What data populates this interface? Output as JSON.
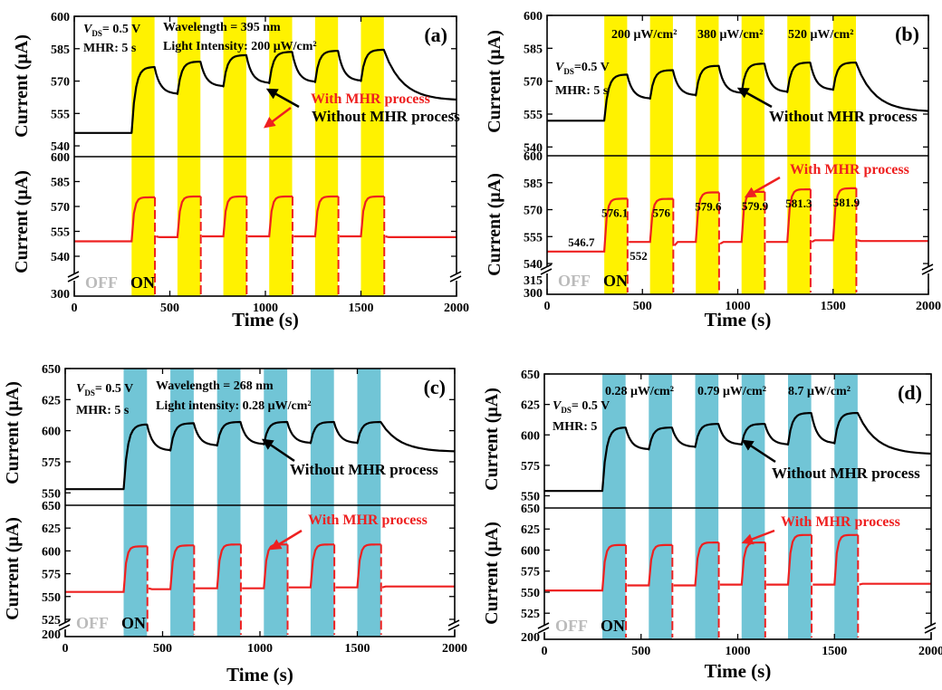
{
  "figure": {
    "xlabel": "Time (s)",
    "ylabel": "Current (μA)",
    "off_label": "OFF",
    "on_label": "ON",
    "without_label": "Without MHR process",
    "with_label": "With MHR process"
  },
  "colors": {
    "yellow": "#FFF200",
    "cyan": "#71C5D6",
    "without": "#000000",
    "with": "#EE2020",
    "off": "#BBBBBB"
  },
  "chart_data": [
    {
      "id": "a",
      "label": "(a)",
      "type": "line",
      "band_color": "yellow",
      "xlim": [
        0,
        2000
      ],
      "xticks": [
        0,
        500,
        1000,
        1500,
        2000
      ],
      "upper": {
        "ylim": [
          535,
          600
        ],
        "yticks": [
          540,
          555,
          570,
          585,
          600
        ]
      },
      "lower": {
        "ylim": [
          528,
          600
        ],
        "yticks": [
          540,
          555,
          570,
          585,
          600
        ],
        "break_tick": 300
      },
      "bands": [
        [
          300,
          420
        ],
        [
          540,
          660
        ],
        [
          780,
          900
        ],
        [
          1020,
          1140
        ],
        [
          1260,
          1380
        ],
        [
          1500,
          1620
        ]
      ],
      "notes": [
        "Wavelength = 395 nm",
        "Light Intensity: 200 μW/cm²",
        "V_DS= 0.5 V",
        "MHR: 5 s"
      ],
      "without": {
        "baseline": 546,
        "end": 561,
        "peaks": [
          576.5,
          579,
          582,
          583.5,
          584,
          584.5
        ],
        "dips": [
          564,
          567.5,
          569,
          569.5,
          570,
          570.5
        ]
      },
      "with": {
        "baseline": 549,
        "peaks": [
          575.5,
          576,
          576,
          576,
          576,
          576
        ],
        "lows": [
          552,
          552,
          552,
          552,
          552,
          552
        ],
        "settle": [
          551.5,
          552,
          552,
          552,
          552,
          552
        ],
        "end": 551.5
      },
      "value_labels": []
    },
    {
      "id": "b",
      "label": "(b)",
      "type": "line",
      "band_color": "yellow",
      "xlim": [
        0,
        2000
      ],
      "xticks": [
        0,
        500,
        1000,
        1500,
        2000
      ],
      "upper": {
        "ylim": [
          536,
          600
        ],
        "yticks": [
          540,
          555,
          570,
          585,
          600
        ]
      },
      "lower": {
        "ylim": [
          537,
          600
        ],
        "yticks": [
          540,
          555,
          570,
          585,
          600
        ],
        "break_tick": 315,
        "bottom_tick": 300
      },
      "bands": [
        [
          300,
          420
        ],
        [
          540,
          660
        ],
        [
          780,
          900
        ],
        [
          1020,
          1140
        ],
        [
          1260,
          1380
        ],
        [
          1500,
          1620
        ]
      ],
      "notes": [
        "V_DS=0.5 V",
        "MHR: 5 s",
        "200 μW/cm²",
        "380 μW/cm²",
        "520 μW/cm²"
      ],
      "without": {
        "baseline": 552,
        "end": 556,
        "peaks": [
          573,
          575,
          577,
          578,
          578.5,
          578.5
        ],
        "dips": [
          562,
          563.5,
          564.5,
          565,
          566,
          566.5
        ]
      },
      "with": {
        "baseline": 546.7,
        "peaks": [
          576.1,
          576,
          579.6,
          579.9,
          581.3,
          581.9
        ],
        "lows": [
          552,
          550,
          551,
          552,
          552,
          553
        ],
        "settle": [
          552,
          552,
          552,
          552,
          553,
          553
        ],
        "end": 552.5
      },
      "value_labels": [
        {
          "x": 180,
          "y": 546.7,
          "text": "546.7"
        },
        {
          "x": 355,
          "y": 576.1,
          "text": "576.1"
        },
        {
          "x": 480,
          "y": 552,
          "text": "552"
        },
        {
          "x": 600,
          "y": 576,
          "text": "576"
        },
        {
          "x": 845,
          "y": 579.6,
          "text": "579.6"
        },
        {
          "x": 1090,
          "y": 579.9,
          "text": "579.9"
        },
        {
          "x": 1320,
          "y": 581.3,
          "text": "581.3"
        },
        {
          "x": 1570,
          "y": 581.9,
          "text": "581.9"
        }
      ]
    },
    {
      "id": "c",
      "label": "(c)",
      "type": "line",
      "band_color": "cyan",
      "xlim": [
        0,
        2000
      ],
      "xticks": [
        0,
        500,
        1000,
        1500,
        2000
      ],
      "upper": {
        "ylim": [
          540,
          650
        ],
        "yticks": [
          550,
          575,
          600,
          625,
          650
        ]
      },
      "lower": {
        "ylim": [
          519,
          650
        ],
        "yticks": [
          525,
          550,
          575,
          600,
          625,
          650
        ],
        "break_tick": 200
      },
      "bands": [
        [
          300,
          420
        ],
        [
          540,
          660
        ],
        [
          780,
          900
        ],
        [
          1020,
          1140
        ],
        [
          1260,
          1380
        ],
        [
          1500,
          1620
        ]
      ],
      "notes": [
        "Wavelength = 268 nm",
        "Light intensity: 0.28 μW/cm²",
        "V_DS= 0.5 V",
        "MHR: 5 s"
      ],
      "without": {
        "baseline": 553,
        "end": 583,
        "peaks": [
          605,
          606,
          607,
          607,
          607,
          607
        ],
        "dips": [
          584,
          588,
          589,
          590,
          590,
          590
        ]
      },
      "with": {
        "baseline": 555,
        "peaks": [
          605,
          606,
          607,
          607,
          607,
          607
        ],
        "lows": [
          559,
          559,
          559,
          560,
          560,
          560
        ],
        "settle": [
          558,
          559,
          559,
          560,
          560,
          560
        ],
        "end": 561
      },
      "value_labels": []
    },
    {
      "id": "d",
      "label": "(d)",
      "type": "line",
      "band_color": "cyan",
      "xlim": [
        0,
        2000
      ],
      "xticks": [
        0,
        500,
        1000,
        1500,
        2000
      ],
      "upper": {
        "ylim": [
          540,
          650
        ],
        "yticks": [
          550,
          575,
          600,
          625,
          650
        ]
      },
      "lower": {
        "ylim": [
          508,
          650
        ],
        "yticks": [
          525,
          550,
          575,
          600,
          625,
          650
        ],
        "break_tick": 200
      },
      "bands": [
        [
          300,
          420
        ],
        [
          540,
          660
        ],
        [
          780,
          900
        ],
        [
          1020,
          1140
        ],
        [
          1260,
          1380
        ],
        [
          1500,
          1620
        ]
      ],
      "notes": [
        "V_DS= 0.5 V",
        "MHR: 5",
        "0.28 μW/cm²",
        "0.79 μW/cm²",
        "8.7 μW/cm²"
      ],
      "without": {
        "baseline": 554,
        "end": 584,
        "peaks": [
          606,
          606,
          609,
          609,
          618,
          618
        ],
        "dips": [
          588,
          590,
          592,
          592,
          593,
          593
        ]
      },
      "with": {
        "baseline": 552,
        "peaks": [
          606,
          606,
          609,
          609,
          618,
          618
        ],
        "lows": [
          558,
          558,
          559,
          559,
          559,
          559
        ],
        "settle": [
          558,
          558,
          559,
          559,
          559,
          559
        ],
        "end": 560
      },
      "value_labels": []
    }
  ]
}
